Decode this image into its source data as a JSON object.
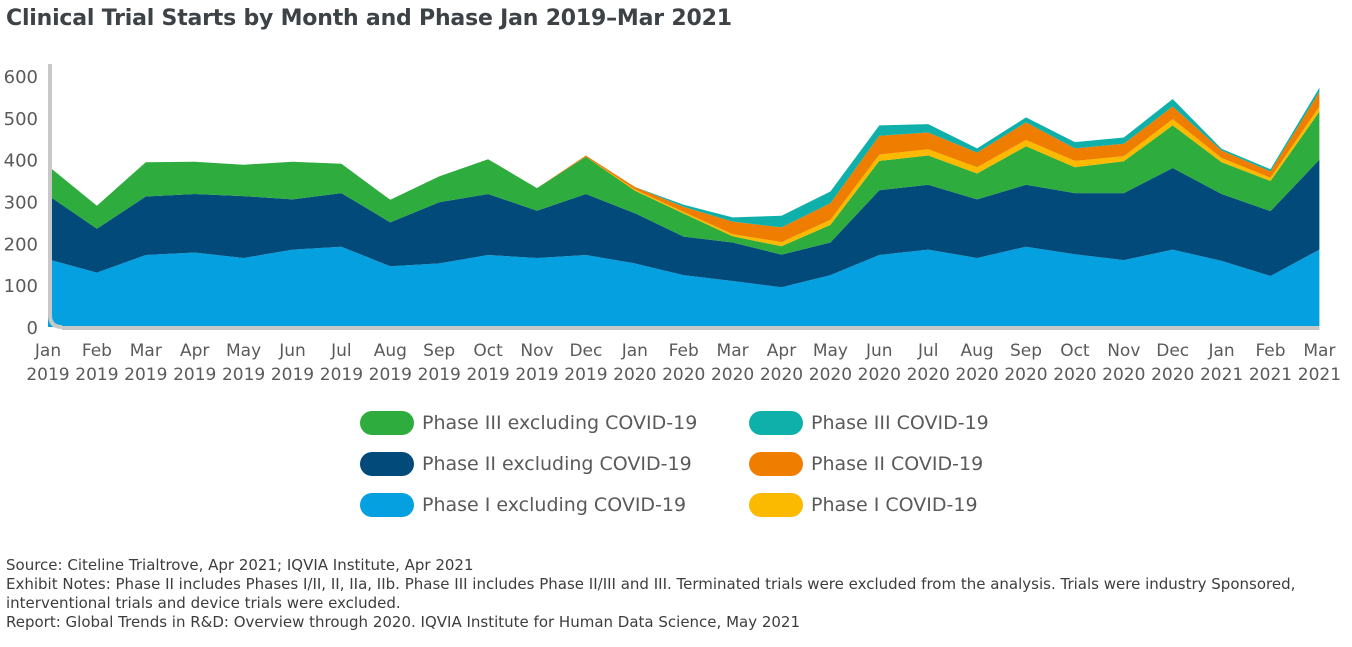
{
  "title": "Clinical Trial Starts by Month and Phase Jan 2019–Mar 2021",
  "chart_data": {
    "type": "area",
    "stacked": true,
    "title": "Clinical Trial Starts by Month and Phase Jan 2019–Mar 2021",
    "xlabel": "",
    "ylabel": "",
    "ylim": [
      0,
      600
    ],
    "yticks": [
      0,
      100,
      200,
      300,
      400,
      500,
      600
    ],
    "grid": false,
    "legend_position": "bottom",
    "categories": [
      [
        "Jan",
        "2019"
      ],
      [
        "Feb",
        "2019"
      ],
      [
        "Mar",
        "2019"
      ],
      [
        "Apr",
        "2019"
      ],
      [
        "May",
        "2019"
      ],
      [
        "Jun",
        "2019"
      ],
      [
        "Jul",
        "2019"
      ],
      [
        "Aug",
        "2019"
      ],
      [
        "Sep",
        "2019"
      ],
      [
        "Oct",
        "2019"
      ],
      [
        "Nov",
        "2019"
      ],
      [
        "Dec",
        "2019"
      ],
      [
        "Jan",
        "2020"
      ],
      [
        "Feb",
        "2020"
      ],
      [
        "Mar",
        "2020"
      ],
      [
        "Apr",
        "2020"
      ],
      [
        "May",
        "2020"
      ],
      [
        "Jun",
        "2020"
      ],
      [
        "Jul",
        "2020"
      ],
      [
        "Aug",
        "2020"
      ],
      [
        "Sep",
        "2020"
      ],
      [
        "Oct",
        "2020"
      ],
      [
        "Nov",
        "2020"
      ],
      [
        "Dec",
        "2020"
      ],
      [
        "Jan",
        "2021"
      ],
      [
        "Feb",
        "2021"
      ],
      [
        "Mar",
        "2021"
      ]
    ],
    "series": [
      {
        "name": "Phase I excluding COVID-19",
        "color": "#04a0e0",
        "values": [
          162,
          130,
          172,
          178,
          165,
          185,
          192,
          145,
          152,
          172,
          165,
          172,
          152,
          124,
          110,
          95,
          124,
          172,
          185,
          165,
          192,
          174,
          160,
          185,
          158,
          122,
          185
        ]
      },
      {
        "name": "Phase II excluding COVID-19",
        "color": "#014a7a",
        "values": [
          153,
          105,
          140,
          140,
          148,
          120,
          128,
          105,
          146,
          146,
          113,
          146,
          120,
          92,
          92,
          78,
          78,
          155,
          155,
          140,
          148,
          146,
          160,
          195,
          160,
          155,
          215
        ]
      },
      {
        "name": "Phase III excluding COVID-19",
        "color": "#2eac3e",
        "values": [
          70,
          55,
          82,
          77,
          75,
          90,
          70,
          54,
          62,
          83,
          54,
          89,
          54,
          55,
          15,
          20,
          42,
          70,
          70,
          62,
          92,
          62,
          76,
          102,
          76,
          72,
          115
        ]
      },
      {
        "name": "Phase I COVID-19",
        "color": "#fbb900",
        "values": [
          0,
          0,
          0,
          0,
          0,
          0,
          0,
          0,
          0,
          0,
          0,
          0,
          3,
          4,
          5,
          10,
          12,
          15,
          15,
          15,
          15,
          15,
          12,
          15,
          10,
          8,
          12
        ]
      },
      {
        "name": "Phase II COVID-19",
        "color": "#ef7d00",
        "values": [
          0,
          0,
          0,
          0,
          0,
          0,
          0,
          0,
          0,
          0,
          0,
          3,
          6,
          12,
          30,
          35,
          40,
          45,
          40,
          35,
          42,
          30,
          30,
          30,
          18,
          15,
          35
        ]
      },
      {
        "name": "Phase III COVID-19",
        "color": "#10b0aa",
        "values": [
          0,
          0,
          0,
          0,
          0,
          0,
          0,
          0,
          0,
          0,
          0,
          0,
          0,
          5,
          10,
          28,
          28,
          25,
          20,
          10,
          12,
          15,
          15,
          18,
          4,
          5,
          10
        ]
      }
    ]
  },
  "legend": [
    {
      "label": "Phase III excluding COVID-19",
      "color": "#2eac3e"
    },
    {
      "label": "Phase III COVID-19",
      "color": "#10b0aa"
    },
    {
      "label": "Phase II excluding COVID-19",
      "color": "#014a7a"
    },
    {
      "label": "Phase II COVID-19",
      "color": "#ef7d00"
    },
    {
      "label": "Phase I excluding COVID-19",
      "color": "#04a0e0"
    },
    {
      "label": "Phase I COVID-19",
      "color": "#fbb900"
    }
  ],
  "notes": {
    "source": "Source: Citeline Trialtrove, Apr 2021; IQVIA Institute, Apr 2021",
    "exhibit_notes": "Exhibit Notes: Phase II includes Phases I/II, II, IIa, IIb. Phase III includes Phase II/III and III. Terminated trials were excluded from the analysis. Trials were industry Sponsored, interventional trials and device trials were excluded.",
    "report": "Report: Global Trends in R&D: Overview through 2020. IQVIA Institute for Human Data Science, May 2021"
  }
}
